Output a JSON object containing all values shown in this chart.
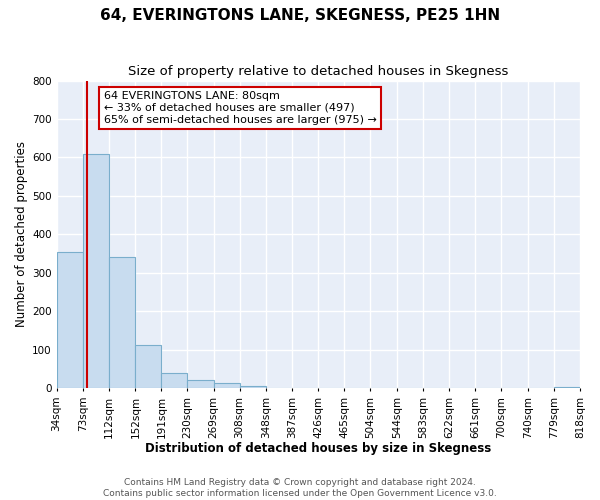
{
  "title": "64, EVERINGTONS LANE, SKEGNESS, PE25 1HN",
  "subtitle": "Size of property relative to detached houses in Skegness",
  "xlabel": "Distribution of detached houses by size in Skegness",
  "ylabel": "Number of detached properties",
  "bin_edges": [
    34,
    73,
    112,
    152,
    191,
    230,
    269,
    308,
    348,
    387,
    426,
    465,
    504,
    544,
    583,
    622,
    661,
    700,
    740,
    779,
    818
  ],
  "bin_labels": [
    "34sqm",
    "73sqm",
    "112sqm",
    "152sqm",
    "191sqm",
    "230sqm",
    "269sqm",
    "308sqm",
    "348sqm",
    "387sqm",
    "426sqm",
    "465sqm",
    "504sqm",
    "544sqm",
    "583sqm",
    "622sqm",
    "661sqm",
    "700sqm",
    "740sqm",
    "779sqm",
    "818sqm"
  ],
  "bar_heights": [
    355,
    610,
    340,
    113,
    40,
    22,
    14,
    5,
    0,
    0,
    0,
    0,
    0,
    0,
    0,
    0,
    0,
    0,
    0,
    3
  ],
  "bar_color": "#c8dcef",
  "bar_edge_color": "#7aaecc",
  "ylim": [
    0,
    800
  ],
  "yticks": [
    0,
    100,
    200,
    300,
    400,
    500,
    600,
    700,
    800
  ],
  "property_line_x": 80,
  "property_line_color": "#cc0000",
  "annotation_line1": "64 EVERINGTONS LANE: 80sqm",
  "annotation_line2": "← 33% of detached houses are smaller (497)",
  "annotation_line3": "65% of semi-detached houses are larger (975) →",
  "footer_line1": "Contains HM Land Registry data © Crown copyright and database right 2024.",
  "footer_line2": "Contains public sector information licensed under the Open Government Licence v3.0.",
  "background_color": "#e8eef8",
  "grid_color": "#ffffff",
  "title_fontsize": 11,
  "subtitle_fontsize": 9.5,
  "axis_label_fontsize": 8.5,
  "tick_fontsize": 7.5,
  "annotation_fontsize": 8,
  "footer_fontsize": 6.5
}
